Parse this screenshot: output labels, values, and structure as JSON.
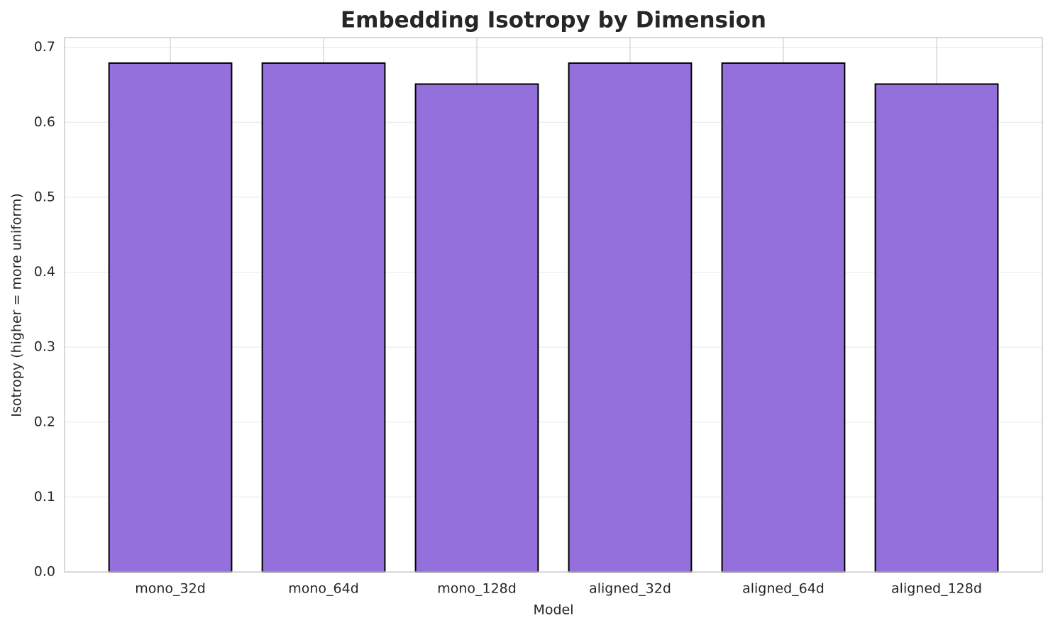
{
  "chart_data": {
    "type": "bar",
    "title": "Embedding Isotropy by Dimension",
    "x_label": "Model",
    "y_label": "Isotropy (higher = more uniform)",
    "categories": [
      "mono_32d",
      "mono_64d",
      "mono_128d",
      "aligned_32d",
      "aligned_64d",
      "aligned_128d"
    ],
    "values": [
      0.679,
      0.679,
      0.651,
      0.679,
      0.679,
      0.651
    ],
    "color": "#9370db",
    "ylim": [
      0,
      0.713
    ],
    "yticks": [
      {
        "value": 0,
        "label": "0.0"
      },
      0.1,
      0.2,
      0.3,
      0.4,
      0.5,
      0.6,
      0.7
    ],
    "grid": true
  }
}
